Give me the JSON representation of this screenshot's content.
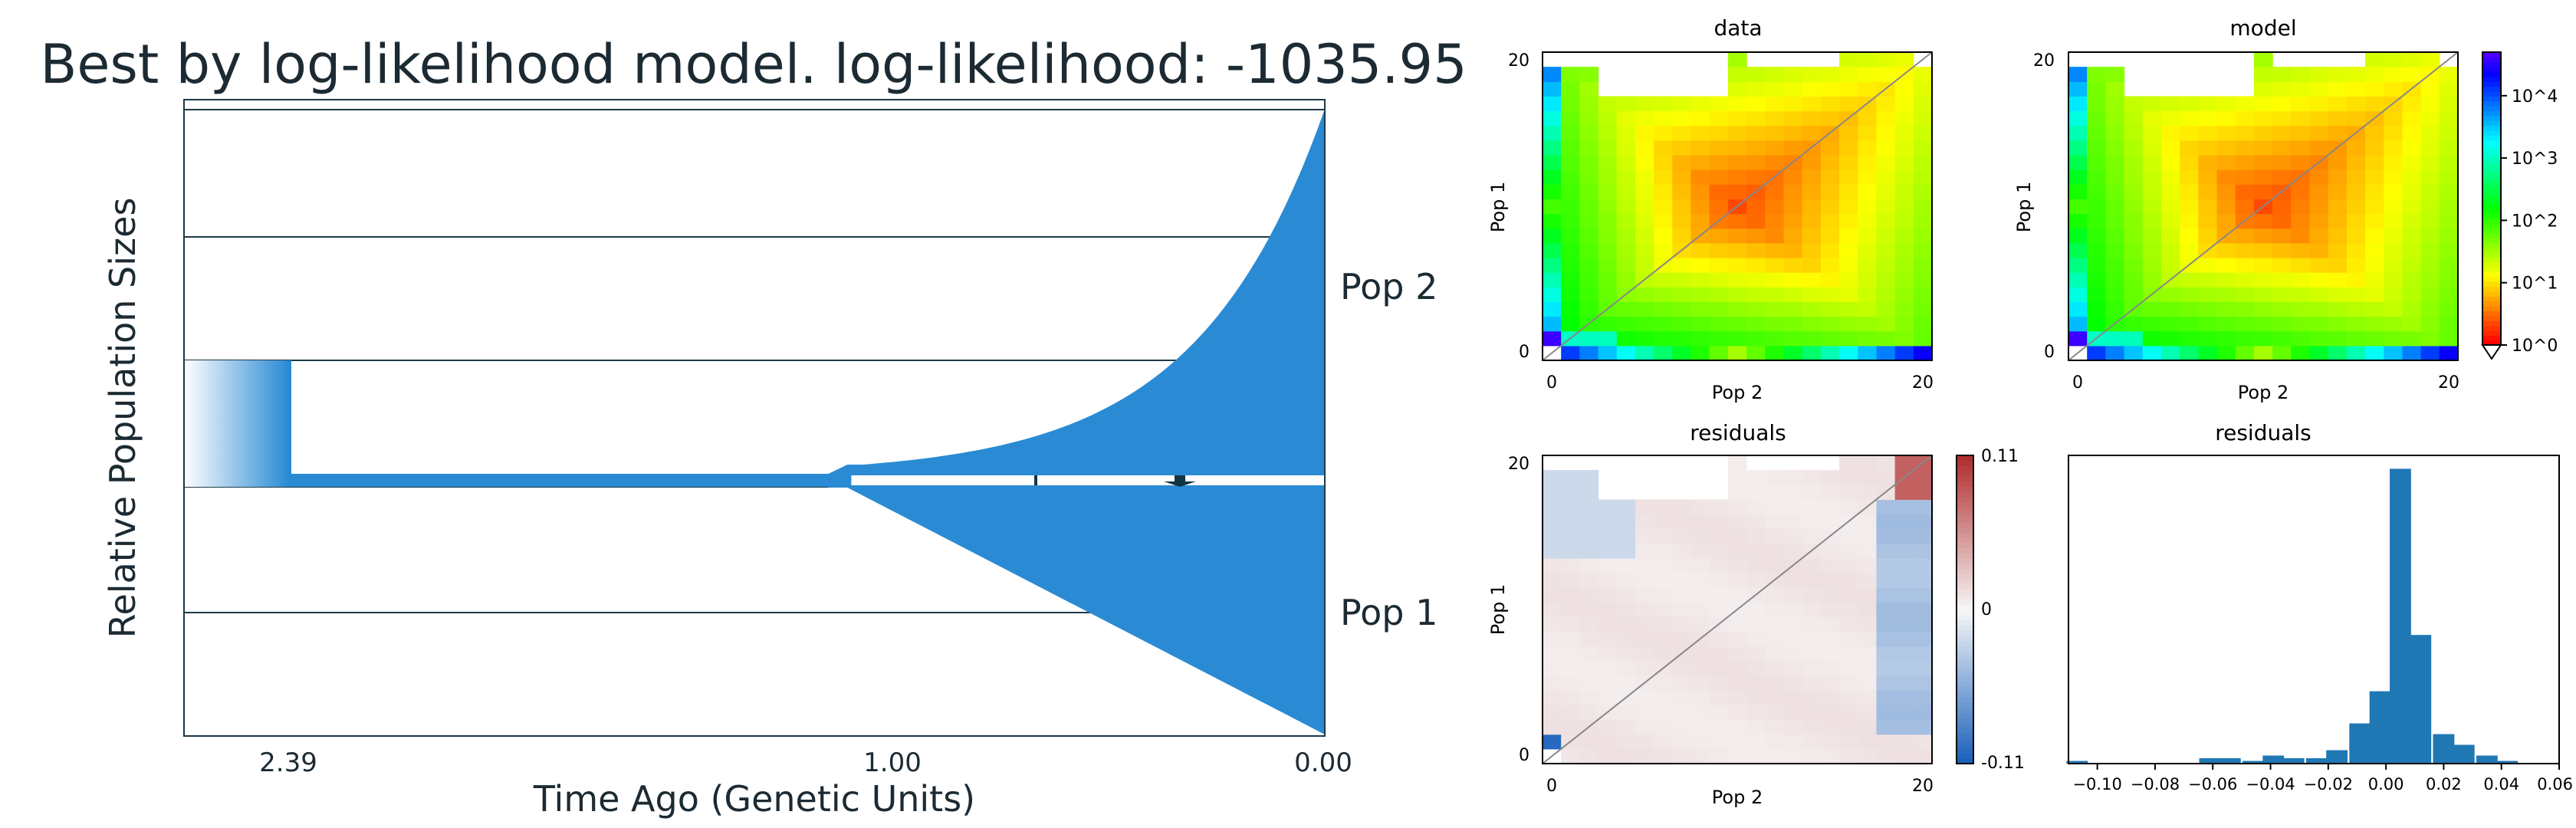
{
  "chart_data": [
    {
      "type": "area",
      "title": "Best by log-likelihood model. log-likelihood: -1035.95",
      "xlabel": "Time Ago (Genetic Units)",
      "ylabel": "Relative Population Sizes",
      "x_ticks": [
        "2.39",
        "1.00",
        "0.00"
      ],
      "x_tick_values": [
        2.39,
        1.0,
        0.0
      ],
      "populations": [
        {
          "name": "Pop 2",
          "split_time": 1.0,
          "size_at_split": 0.05,
          "size_now": 2.8,
          "growth": "exponential"
        },
        {
          "name": "Pop 1",
          "split_time": 1.0,
          "size_at_split": 0.05,
          "size_now": 2.0,
          "growth": "linear"
        }
      ],
      "ancestral": {
        "start": 2.39,
        "size_before": 1.0,
        "size_after": 0.1,
        "size_change_time": 2.39
      },
      "color": "#2a8bd4",
      "grid": true
    },
    {
      "type": "heatmap",
      "title": "data",
      "xlabel": "Pop 2",
      "ylabel": "Pop 1",
      "x_ticks": [
        "0",
        "20"
      ],
      "y_ticks": [
        "0",
        "20"
      ],
      "xlim": [
        0,
        20
      ],
      "ylim": [
        0,
        20
      ],
      "color_scale": "log",
      "colormap": "hsv"
    },
    {
      "type": "heatmap",
      "title": "model",
      "xlabel": "Pop 2",
      "ylabel": "Pop 1",
      "x_ticks": [
        "0",
        "20"
      ],
      "y_ticks": [
        "0",
        "20"
      ],
      "xlim": [
        0,
        20
      ],
      "ylim": [
        0,
        20
      ],
      "color_scale": "log",
      "colorbar_ticks": [
        "10^0",
        "10^1",
        "10^2",
        "10^3",
        "10^4"
      ],
      "colorbar_range": [
        1,
        50000
      ]
    },
    {
      "type": "heatmap",
      "title": "residuals",
      "xlabel": "Pop 2",
      "ylabel": "Pop 1",
      "x_ticks": [
        "0",
        "20"
      ],
      "y_ticks": [
        "0",
        "20"
      ],
      "colorbar_ticks": [
        "0.11",
        "0",
        "-0.11"
      ],
      "colorbar_range": [
        -0.11,
        0.11
      ],
      "colormap": "RdBu_r"
    },
    {
      "type": "bar",
      "title": "residuals",
      "x_ticks": [
        "−0.10",
        "−0.08",
        "−0.06",
        "−0.04",
        "−0.02",
        "0.00",
        "0.02",
        "0.04",
        "0.06"
      ],
      "xlim": [
        -0.11,
        0.06
      ],
      "bin_width": 0.00739,
      "bins": [
        {
          "x": -0.107,
          "count": 1
        },
        {
          "x": -0.061,
          "count": 2
        },
        {
          "x": -0.054,
          "count": 2
        },
        {
          "x": -0.046,
          "count": 1
        },
        {
          "x": -0.039,
          "count": 3
        },
        {
          "x": -0.032,
          "count": 2
        },
        {
          "x": -0.024,
          "count": 2
        },
        {
          "x": -0.017,
          "count": 5
        },
        {
          "x": -0.009,
          "count": 15
        },
        {
          "x": -0.002,
          "count": 27
        },
        {
          "x": 0.005,
          "count": 110
        },
        {
          "x": 0.012,
          "count": 48
        },
        {
          "x": 0.02,
          "count": 11
        },
        {
          "x": 0.027,
          "count": 7
        },
        {
          "x": 0.035,
          "count": 3
        },
        {
          "x": 0.042,
          "count": 1
        }
      ]
    }
  ]
}
